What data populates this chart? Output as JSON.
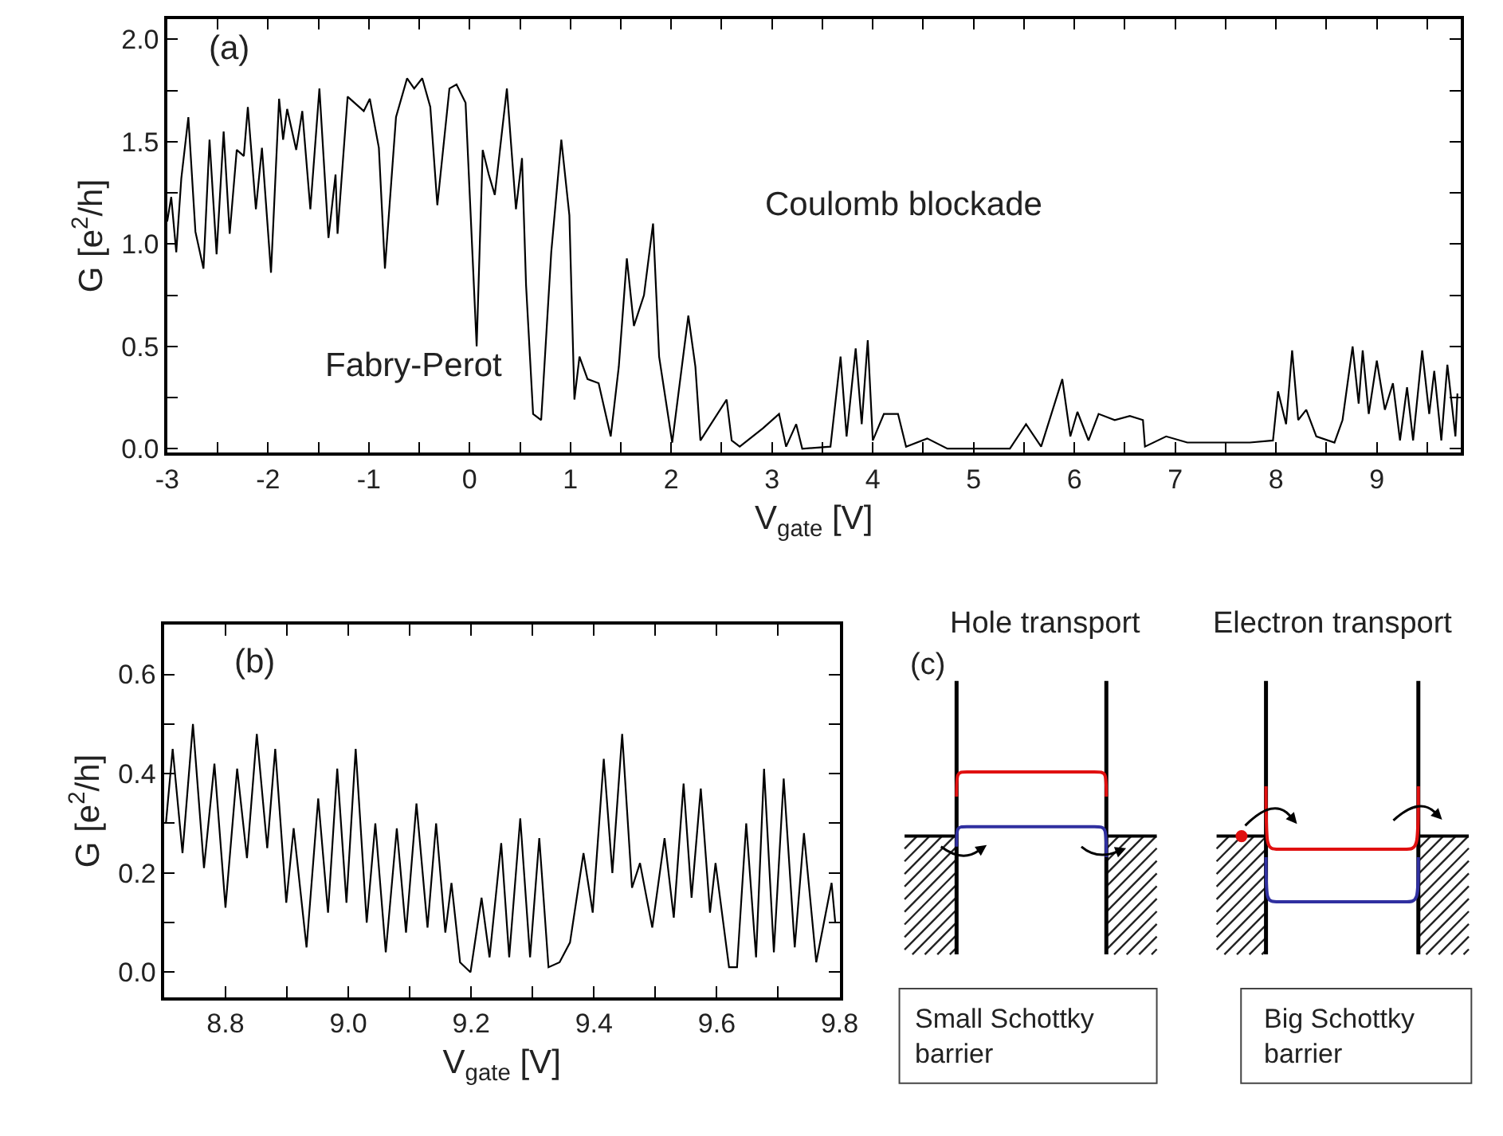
{
  "chart_data": [
    {
      "type": "line",
      "xlabel": "V$_{gate}$ [V]",
      "ylabel": "G [e$^{2}$/h]",
      "annotations": [
        "(a)",
        "Fabry-Perot",
        "Coulomb blockade"
      ],
      "color": "#000000",
      "xlim": [
        -3,
        9.83
      ],
      "ylim": [
        -0.02,
        2.1
      ],
      "xticks": [
        -3,
        {
          "value": -2.5,
          "label": null
        },
        -2,
        {
          "value": -1.5,
          "label": null
        },
        -1,
        {
          "value": -0.5,
          "label": null
        },
        0,
        {
          "value": 0.5,
          "label": null
        },
        1,
        {
          "value": 1.5,
          "label": null
        },
        2,
        {
          "value": 2.5,
          "label": null
        },
        3,
        {
          "value": 3.5,
          "label": null
        },
        4,
        {
          "value": 4.5,
          "label": null
        },
        5,
        {
          "value": 5.5,
          "label": null
        },
        6,
        {
          "value": 6.5,
          "label": null
        },
        7,
        {
          "value": 7.5,
          "label": null
        },
        8,
        {
          "value": 8.5,
          "label": null
        },
        9,
        {
          "value": 9.5,
          "label": null
        }
      ],
      "yticks": [
        {
          "value": 0,
          "label": "0.0"
        },
        {
          "value": 0.25,
          "label": null
        },
        0.5,
        {
          "value": 0.75,
          "label": null
        },
        {
          "value": 1,
          "label": "1.0"
        },
        {
          "value": 1.25,
          "label": null
        },
        1.5,
        {
          "value": 1.75,
          "label": null
        },
        {
          "value": 2,
          "label": "2.0"
        }
      ],
      "x": [
        -3.0,
        -2.96,
        -2.91,
        -2.86,
        -2.79,
        -2.72,
        -2.64,
        -2.58,
        -2.51,
        -2.44,
        -2.38,
        -2.31,
        -2.24,
        -2.2,
        -2.12,
        -2.06,
        -1.97,
        -1.89,
        -1.85,
        -1.81,
        -1.72,
        -1.66,
        -1.58,
        -1.49,
        -1.4,
        -1.33,
        -1.31,
        -1.21,
        -1.05,
        -0.99,
        -0.9,
        -0.84,
        -0.73,
        -0.62,
        -0.55,
        -0.47,
        -0.39,
        -0.32,
        -0.2,
        -0.13,
        -0.04,
        0.07,
        0.13,
        0.19,
        0.25,
        0.37,
        0.46,
        0.52,
        0.56,
        0.63,
        0.71,
        0.81,
        0.91,
        0.99,
        1.04,
        1.09,
        1.17,
        1.28,
        1.4,
        1.48,
        1.56,
        1.63,
        1.73,
        1.82,
        1.88,
        2.01,
        2.17,
        2.24,
        2.29,
        2.55,
        2.6,
        2.68,
        2.91,
        3.07,
        3.14,
        3.24,
        3.3,
        3.58,
        3.68,
        3.74,
        3.83,
        3.89,
        3.95,
        4.0,
        4.11,
        4.25,
        4.33,
        4.54,
        4.74,
        5.0,
        5.36,
        5.52,
        5.67,
        5.88,
        5.96,
        6.03,
        6.14,
        6.24,
        6.4,
        6.55,
        6.68,
        6.7,
        6.91,
        7.12,
        7.38,
        7.74,
        7.97,
        8.02,
        8.1,
        8.16,
        8.22,
        8.3,
        8.4,
        8.58,
        8.66,
        8.76,
        8.82,
        8.86,
        8.92,
        9.0,
        9.08,
        9.16,
        9.23,
        9.3,
        9.36,
        9.45,
        9.52,
        9.57,
        9.64,
        9.7,
        9.78,
        9.8
      ],
      "values": [
        1.11,
        1.23,
        0.96,
        1.32,
        1.62,
        1.06,
        0.88,
        1.51,
        0.95,
        1.55,
        1.05,
        1.46,
        1.43,
        1.67,
        1.17,
        1.47,
        0.86,
        1.71,
        1.51,
        1.66,
        1.46,
        1.65,
        1.17,
        1.76,
        1.03,
        1.34,
        1.05,
        1.72,
        1.65,
        1.71,
        1.47,
        0.88,
        1.62,
        1.81,
        1.76,
        1.81,
        1.67,
        1.19,
        1.76,
        1.78,
        1.69,
        0.5,
        1.46,
        1.34,
        1.24,
        1.76,
        1.17,
        1.42,
        0.8,
        0.17,
        0.14,
        0.96,
        1.51,
        1.14,
        0.24,
        0.45,
        0.34,
        0.32,
        0.06,
        0.4,
        0.93,
        0.6,
        0.75,
        1.1,
        0.45,
        0.03,
        0.65,
        0.4,
        0.04,
        0.24,
        0.04,
        0.01,
        0.1,
        0.17,
        0.01,
        0.12,
        0.0,
        0.01,
        0.45,
        0.06,
        0.49,
        0.12,
        0.53,
        0.04,
        0.17,
        0.17,
        0.01,
        0.05,
        0.0,
        0.0,
        0.0,
        0.12,
        0.01,
        0.34,
        0.06,
        0.18,
        0.04,
        0.17,
        0.14,
        0.16,
        0.14,
        0.01,
        0.06,
        0.03,
        0.03,
        0.03,
        0.04,
        0.28,
        0.12,
        0.48,
        0.14,
        0.19,
        0.06,
        0.03,
        0.14,
        0.5,
        0.22,
        0.48,
        0.17,
        0.43,
        0.19,
        0.32,
        0.04,
        0.3,
        0.04,
        0.48,
        0.17,
        0.38,
        0.04,
        0.41,
        0.06,
        0.27
      ]
    },
    {
      "type": "line",
      "xlabel": "V$_{gate}$ [V]",
      "ylabel": "G [e$^{2}$/h]",
      "annotations": [
        "(b)"
      ],
      "color": "#000000",
      "xlim": [
        8.7,
        9.8
      ],
      "ylim": [
        -0.05,
        0.7
      ],
      "xticks": [
        8.8,
        {
          "value": 8.9,
          "label": null
        },
        {
          "value": 9.0,
          "label": "9.0"
        },
        {
          "value": 9.1,
          "label": null
        },
        9.2,
        {
          "value": 9.3,
          "label": null
        },
        9.4,
        {
          "value": 9.5,
          "label": null
        },
        9.6,
        {
          "value": 9.7,
          "label": null
        },
        9.8
      ],
      "yticks": [
        {
          "value": 0,
          "label": "0.0"
        },
        {
          "value": 0.1,
          "label": null
        },
        0.2,
        {
          "value": 0.3,
          "label": null
        },
        0.4,
        {
          "value": 0.5,
          "label": null
        },
        0.6
      ],
      "x": [
        8.703,
        8.714,
        8.73,
        8.747,
        8.765,
        8.782,
        8.8,
        8.819,
        8.835,
        8.851,
        8.868,
        8.881,
        8.899,
        8.911,
        8.932,
        8.951,
        8.967,
        8.982,
        8.997,
        9.012,
        9.03,
        9.044,
        9.061,
        9.079,
        9.094,
        9.111,
        9.129,
        9.143,
        9.158,
        9.168,
        9.182,
        9.199,
        9.217,
        9.23,
        9.249,
        9.262,
        9.28,
        9.296,
        9.311,
        9.326,
        9.344,
        9.361,
        9.383,
        9.398,
        9.416,
        9.43,
        9.446,
        9.462,
        9.475,
        9.495,
        9.515,
        9.53,
        9.546,
        9.559,
        9.574,
        9.589,
        9.598,
        9.62,
        9.633,
        9.648,
        9.664,
        9.677,
        9.693,
        9.709,
        9.727,
        9.742,
        9.762,
        9.787,
        9.793
      ],
      "values": [
        0.3,
        0.45,
        0.24,
        0.5,
        0.21,
        0.42,
        0.13,
        0.41,
        0.23,
        0.48,
        0.25,
        0.45,
        0.14,
        0.29,
        0.05,
        0.35,
        0.12,
        0.41,
        0.14,
        0.45,
        0.1,
        0.3,
        0.04,
        0.29,
        0.08,
        0.34,
        0.09,
        0.3,
        0.08,
        0.18,
        0.02,
        0.0,
        0.15,
        0.03,
        0.26,
        0.03,
        0.31,
        0.03,
        0.27,
        0.01,
        0.02,
        0.06,
        0.24,
        0.12,
        0.43,
        0.2,
        0.48,
        0.17,
        0.22,
        0.09,
        0.27,
        0.11,
        0.38,
        0.15,
        0.37,
        0.12,
        0.22,
        0.01,
        0.01,
        0.3,
        0.03,
        0.41,
        0.04,
        0.39,
        0.05,
        0.28,
        0.02,
        0.18,
        0.1
      ]
    },
    {
      "type": "other",
      "annotations": [
        "(c)",
        "Hole transport",
        "Electron transport",
        "Small Schottky barrier",
        "Big Schottky barrier"
      ]
    }
  ]
}
